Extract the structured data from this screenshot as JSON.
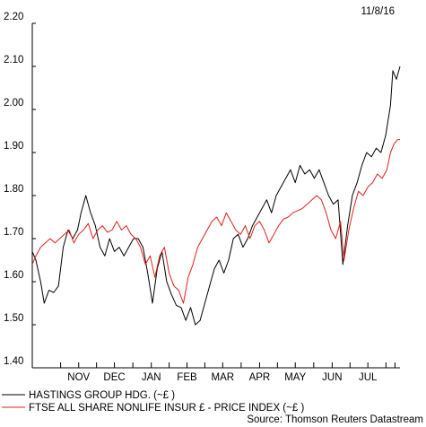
{
  "chart_data": {
    "type": "line",
    "date_label": "11/8/16",
    "source": "Source: Thomson Reuters Datastream",
    "ylim": [
      1.4,
      2.2
    ],
    "y_ticks": [
      "1.40",
      "1.50",
      "1.60",
      "1.70",
      "1.80",
      "1.90",
      "2.00",
      "2.10",
      "2.20"
    ],
    "x_range": [
      "2015-10-07",
      "2016-08-11"
    ],
    "x_ticks": [
      {
        "label": "NOV",
        "date": "2015-11-15"
      },
      {
        "label": "DEC",
        "date": "2015-12-15"
      },
      {
        "label": "JAN",
        "date": "2016-01-15"
      },
      {
        "label": "FEB",
        "date": "2016-02-14"
      },
      {
        "label": "MAR",
        "date": "2016-03-15"
      },
      {
        "label": "APR",
        "date": "2016-04-15"
      },
      {
        "label": "MAY",
        "date": "2016-05-15"
      },
      {
        "label": "JUN",
        "date": "2016-06-15"
      },
      {
        "label": "JUL",
        "date": "2016-07-15"
      }
    ],
    "series": [
      {
        "name": "HASTINGS GROUP HDG. (~£ )",
        "color": "#000000",
        "points": [
          [
            "2015-10-07",
            1.67
          ],
          [
            "2015-10-10",
            1.65
          ],
          [
            "2015-10-14",
            1.6
          ],
          [
            "2015-10-17",
            1.55
          ],
          [
            "2015-10-21",
            1.58
          ],
          [
            "2015-10-25",
            1.575
          ],
          [
            "2015-10-29",
            1.59
          ],
          [
            "2015-11-02",
            1.68
          ],
          [
            "2015-11-06",
            1.72
          ],
          [
            "2015-11-10",
            1.7
          ],
          [
            "2015-11-14",
            1.72
          ],
          [
            "2015-11-17",
            1.76
          ],
          [
            "2015-11-21",
            1.8
          ],
          [
            "2015-11-25",
            1.76
          ],
          [
            "2015-11-29",
            1.73
          ],
          [
            "2015-12-03",
            1.68
          ],
          [
            "2015-12-07",
            1.66
          ],
          [
            "2015-12-11",
            1.7
          ],
          [
            "2015-12-15",
            1.67
          ],
          [
            "2015-12-19",
            1.68
          ],
          [
            "2015-12-23",
            1.66
          ],
          [
            "2015-12-27",
            1.68
          ],
          [
            "2015-12-31",
            1.7
          ],
          [
            "2016-01-04",
            1.7
          ],
          [
            "2016-01-08",
            1.68
          ],
          [
            "2016-01-12",
            1.62
          ],
          [
            "2016-01-16",
            1.55
          ],
          [
            "2016-01-20",
            1.63
          ],
          [
            "2016-01-24",
            1.67
          ],
          [
            "2016-01-28",
            1.6
          ],
          [
            "2016-02-01",
            1.57
          ],
          [
            "2016-02-05",
            1.545
          ],
          [
            "2016-02-09",
            1.54
          ],
          [
            "2016-02-13",
            1.51
          ],
          [
            "2016-02-17",
            1.54
          ],
          [
            "2016-02-21",
            1.5
          ],
          [
            "2016-02-25",
            1.51
          ],
          [
            "2016-02-29",
            1.55
          ],
          [
            "2016-03-04",
            1.59
          ],
          [
            "2016-03-08",
            1.63
          ],
          [
            "2016-03-12",
            1.65
          ],
          [
            "2016-03-16",
            1.62
          ],
          [
            "2016-03-20",
            1.65
          ],
          [
            "2016-03-24",
            1.7
          ],
          [
            "2016-03-28",
            1.71
          ],
          [
            "2016-04-01",
            1.68
          ],
          [
            "2016-04-05",
            1.7
          ],
          [
            "2016-04-09",
            1.73
          ],
          [
            "2016-04-13",
            1.75
          ],
          [
            "2016-04-17",
            1.77
          ],
          [
            "2016-04-21",
            1.79
          ],
          [
            "2016-04-25",
            1.76
          ],
          [
            "2016-04-29",
            1.8
          ],
          [
            "2016-05-03",
            1.82
          ],
          [
            "2016-05-07",
            1.84
          ],
          [
            "2016-05-11",
            1.86
          ],
          [
            "2016-05-15",
            1.83
          ],
          [
            "2016-05-19",
            1.87
          ],
          [
            "2016-05-23",
            1.85
          ],
          [
            "2016-05-27",
            1.86
          ],
          [
            "2016-05-31",
            1.84
          ],
          [
            "2016-06-04",
            1.86
          ],
          [
            "2016-06-08",
            1.83
          ],
          [
            "2016-06-12",
            1.8
          ],
          [
            "2016-06-16",
            1.78
          ],
          [
            "2016-06-20",
            1.79
          ],
          [
            "2016-06-24",
            1.64
          ],
          [
            "2016-06-28",
            1.73
          ],
          [
            "2016-07-02",
            1.8
          ],
          [
            "2016-07-06",
            1.83
          ],
          [
            "2016-07-10",
            1.87
          ],
          [
            "2016-07-14",
            1.9
          ],
          [
            "2016-07-18",
            1.89
          ],
          [
            "2016-07-22",
            1.91
          ],
          [
            "2016-07-26",
            1.9
          ],
          [
            "2016-07-30",
            1.94
          ],
          [
            "2016-08-03",
            2.01
          ],
          [
            "2016-08-05",
            2.09
          ],
          [
            "2016-08-08",
            2.07
          ],
          [
            "2016-08-11",
            2.1
          ]
        ]
      },
      {
        "name": "FTSE ALL SHARE NONLIFE INSUR £ - PRICE INDEX (~£ )",
        "color": "#e0201b",
        "points": [
          [
            "2015-10-07",
            1.64
          ],
          [
            "2015-10-10",
            1.66
          ],
          [
            "2015-10-14",
            1.68
          ],
          [
            "2015-10-18",
            1.69
          ],
          [
            "2015-10-22",
            1.7
          ],
          [
            "2015-10-26",
            1.69
          ],
          [
            "2015-10-30",
            1.7
          ],
          [
            "2015-11-03",
            1.71
          ],
          [
            "2015-11-07",
            1.72
          ],
          [
            "2015-11-11",
            1.69
          ],
          [
            "2015-11-15",
            1.71
          ],
          [
            "2015-11-19",
            1.72
          ],
          [
            "2015-11-23",
            1.735
          ],
          [
            "2015-11-27",
            1.7
          ],
          [
            "2015-12-01",
            1.72
          ],
          [
            "2015-12-05",
            1.73
          ],
          [
            "2015-12-09",
            1.715
          ],
          [
            "2015-12-13",
            1.72
          ],
          [
            "2015-12-17",
            1.74
          ],
          [
            "2015-12-21",
            1.72
          ],
          [
            "2015-12-25",
            1.73
          ],
          [
            "2015-12-29",
            1.71
          ],
          [
            "2016-01-02",
            1.7
          ],
          [
            "2016-01-06",
            1.68
          ],
          [
            "2016-01-10",
            1.64
          ],
          [
            "2016-01-14",
            1.66
          ],
          [
            "2016-01-18",
            1.61
          ],
          [
            "2016-01-22",
            1.66
          ],
          [
            "2016-01-26",
            1.68
          ],
          [
            "2016-01-30",
            1.62
          ],
          [
            "2016-02-03",
            1.59
          ],
          [
            "2016-02-07",
            1.58
          ],
          [
            "2016-02-11",
            1.55
          ],
          [
            "2016-02-15",
            1.61
          ],
          [
            "2016-02-19",
            1.64
          ],
          [
            "2016-02-23",
            1.68
          ],
          [
            "2016-02-27",
            1.7
          ],
          [
            "2016-03-02",
            1.72
          ],
          [
            "2016-03-06",
            1.74
          ],
          [
            "2016-03-10",
            1.75
          ],
          [
            "2016-03-14",
            1.73
          ],
          [
            "2016-03-18",
            1.76
          ],
          [
            "2016-03-22",
            1.74
          ],
          [
            "2016-03-26",
            1.72
          ],
          [
            "2016-03-30",
            1.71
          ],
          [
            "2016-04-03",
            1.73
          ],
          [
            "2016-04-07",
            1.7
          ],
          [
            "2016-04-11",
            1.73
          ],
          [
            "2016-04-15",
            1.74
          ],
          [
            "2016-04-19",
            1.72
          ],
          [
            "2016-04-23",
            1.69
          ],
          [
            "2016-04-27",
            1.71
          ],
          [
            "2016-05-01",
            1.73
          ],
          [
            "2016-05-05",
            1.745
          ],
          [
            "2016-05-09",
            1.75
          ],
          [
            "2016-05-13",
            1.76
          ],
          [
            "2016-05-17",
            1.765
          ],
          [
            "2016-05-21",
            1.77
          ],
          [
            "2016-05-25",
            1.78
          ],
          [
            "2016-05-29",
            1.79
          ],
          [
            "2016-06-02",
            1.8
          ],
          [
            "2016-06-06",
            1.79
          ],
          [
            "2016-06-10",
            1.76
          ],
          [
            "2016-06-14",
            1.72
          ],
          [
            "2016-06-18",
            1.7
          ],
          [
            "2016-06-22",
            1.74
          ],
          [
            "2016-06-25",
            1.65
          ],
          [
            "2016-06-29",
            1.72
          ],
          [
            "2016-07-03",
            1.77
          ],
          [
            "2016-07-07",
            1.81
          ],
          [
            "2016-07-11",
            1.8
          ],
          [
            "2016-07-15",
            1.82
          ],
          [
            "2016-07-19",
            1.83
          ],
          [
            "2016-07-23",
            1.85
          ],
          [
            "2016-07-27",
            1.84
          ],
          [
            "2016-07-31",
            1.86
          ],
          [
            "2016-08-03",
            1.9
          ],
          [
            "2016-08-06",
            1.92
          ],
          [
            "2016-08-09",
            1.93
          ],
          [
            "2016-08-11",
            1.93
          ]
        ]
      }
    ]
  }
}
